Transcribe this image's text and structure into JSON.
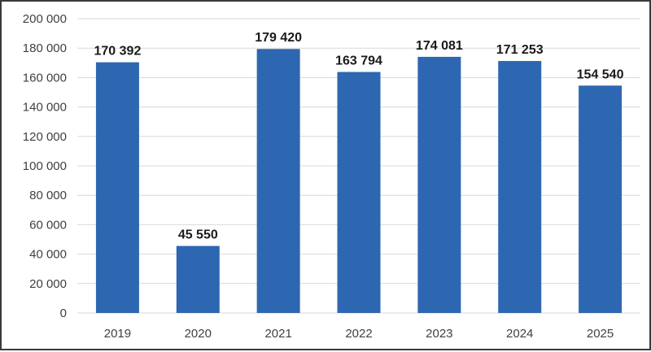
{
  "chart_data": {
    "type": "bar",
    "title": "",
    "xlabel": "",
    "ylabel": "",
    "categories": [
      "2019",
      "2020",
      "2021",
      "2022",
      "2023",
      "2024",
      "2025"
    ],
    "values": [
      170392,
      45550,
      179420,
      163794,
      174081,
      171253,
      154540
    ],
    "value_labels": [
      "170 392",
      "45 550",
      "179 420",
      "163 794",
      "174 081",
      "171 253",
      "154 540"
    ],
    "ylim": [
      0,
      200000
    ],
    "yticks": [
      0,
      20000,
      40000,
      60000,
      80000,
      100000,
      120000,
      140000,
      160000,
      180000,
      200000
    ],
    "ytick_labels": [
      "0",
      "20 000",
      "40 000",
      "60 000",
      "80 000",
      "100 000",
      "120 000",
      "140 000",
      "160 000",
      "180 000",
      "200 000"
    ],
    "grid": true,
    "legend": "none",
    "bar_color": "#2e67b1",
    "grid_color": "#d9d9d9"
  }
}
